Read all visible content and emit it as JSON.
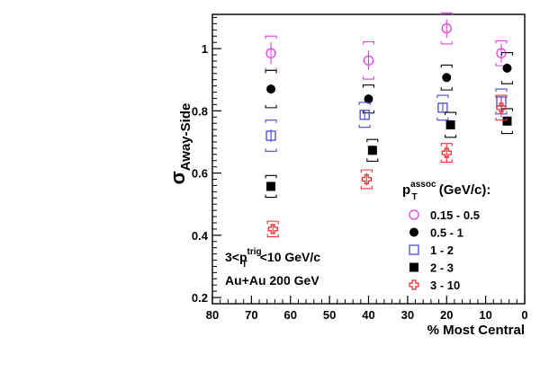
{
  "chart_data": {
    "type": "scatter",
    "xlabel": "% Most Central",
    "ylabel": {
      "main": "σ",
      "sub": "Away-Side"
    },
    "xlim": [
      80,
      0
    ],
    "ylim": [
      0.18,
      1.11
    ],
    "x_ticks": [
      80,
      70,
      60,
      50,
      40,
      30,
      20,
      10,
      0
    ],
    "y_ticks": [
      0.2,
      0.4,
      0.6,
      0.8,
      1
    ],
    "y_tick_labels": [
      "0.2",
      "0.4",
      "0.6",
      "0.8",
      "1"
    ],
    "legend": {
      "title_main": "p",
      "title_sup": "assoc",
      "title_sub": "T",
      "title_rest": " (GeV/c):",
      "placement": "bottom-right"
    },
    "series": [
      {
        "name": "0.15 - 0.5",
        "marker": "open-circle",
        "color": "#e040e0",
        "x": [
          65,
          40,
          20,
          6
        ],
        "y": [
          0.985,
          0.962,
          1.065,
          0.985
        ],
        "stat": [
          0.035,
          0.03,
          0.03,
          0.03
        ],
        "sys": [
          0.055,
          0.06,
          0.05,
          0.04
        ]
      },
      {
        "name": "0.5 - 1",
        "marker": "filled-circle",
        "color": "#000000",
        "x": [
          65,
          40,
          20,
          4.5
        ],
        "y": [
          0.87,
          0.838,
          0.907,
          0.937
        ],
        "stat": [
          0.015,
          0.015,
          0.012,
          0.012
        ],
        "sys": [
          0.06,
          0.045,
          0.04,
          0.05
        ]
      },
      {
        "name": "1 - 2",
        "marker": "open-square",
        "color": "#4a4acc",
        "x": [
          65,
          41,
          21,
          6
        ],
        "y": [
          0.72,
          0.787,
          0.81,
          0.83
        ],
        "stat": [
          0.02,
          0.015,
          0.015,
          0.015
        ],
        "sys": [
          0.05,
          0.04,
          0.04,
          0.04
        ]
      },
      {
        "name": "2 - 3",
        "marker": "filled-square",
        "color": "#000000",
        "x": [
          65,
          39,
          19,
          4.5
        ],
        "y": [
          0.557,
          0.673,
          0.755,
          0.767
        ],
        "stat": [
          0.015,
          0.015,
          0.015,
          0.015
        ],
        "sys": [
          0.035,
          0.035,
          0.04,
          0.04
        ]
      },
      {
        "name": "3 - 10",
        "marker": "open-cross",
        "color": "#e83030",
        "x": [
          64.5,
          40.5,
          20,
          6
        ],
        "y": [
          0.42,
          0.58,
          0.665,
          0.81
        ],
        "stat": [
          0.015,
          0.02,
          0.03,
          0.03
        ],
        "sys": [
          0.025,
          0.03,
          0.03,
          0.04
        ]
      }
    ],
    "annotations": [
      {
        "main": "3<p",
        "sub": "T",
        "sup": "trig",
        "rest": "<10 GeV/c"
      },
      {
        "main": "Au+Au 200 GeV"
      }
    ]
  }
}
